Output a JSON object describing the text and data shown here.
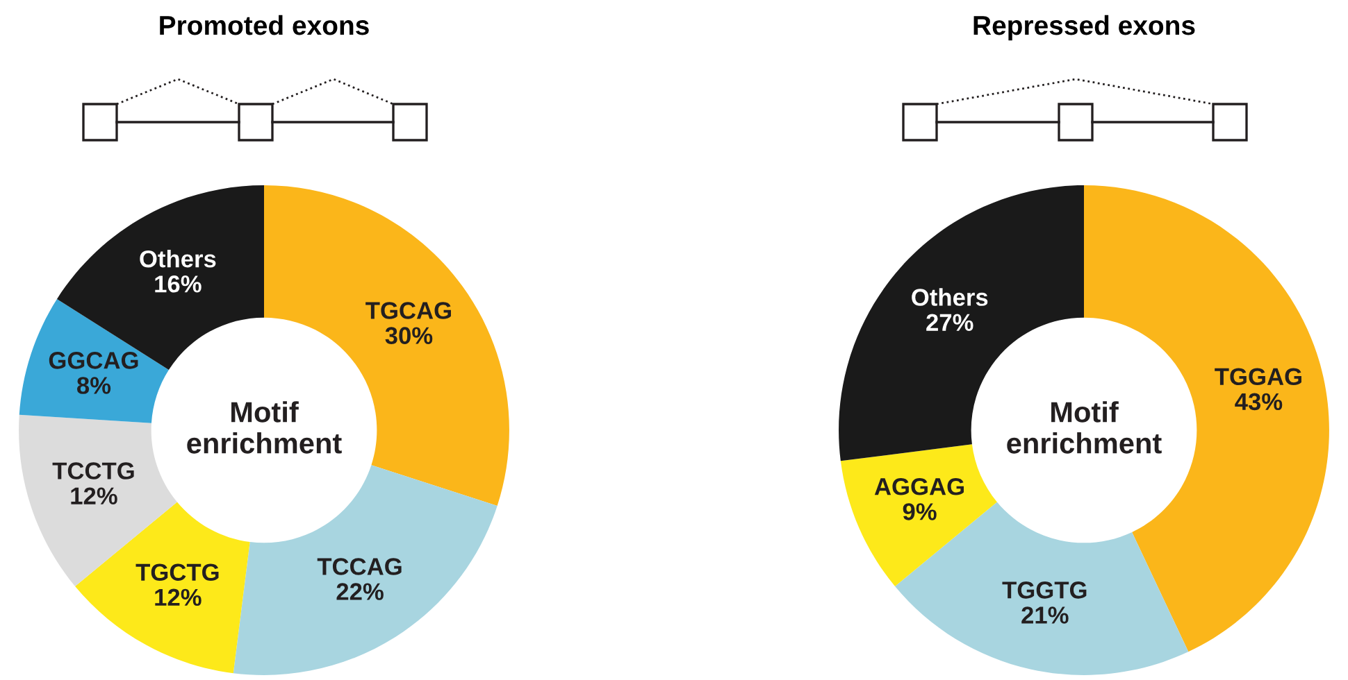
{
  "chart_data": [
    {
      "type": "donut",
      "title": "Promoted exons",
      "annotations": [
        "Motif\nenrichment"
      ],
      "value_labels": [
        "30%",
        "22%",
        "12%",
        "12%",
        "8%",
        "16%"
      ],
      "categories": [
        "TGCAG",
        "TCCAG",
        "TGCTG",
        "TCCTG",
        "GGCAG",
        "Others"
      ],
      "values": [
        30,
        22,
        12,
        12,
        8,
        16
      ],
      "colors": [
        "#fbb61a",
        "#a8d5e0",
        "#fde91a",
        "#dcdcdc",
        "#3aa8d8",
        "#1a1a1a"
      ]
    },
    {
      "type": "donut",
      "title": "Repressed exons",
      "annotations": [
        "Motif\nenrichment"
      ],
      "value_labels": [
        "43%",
        "21%",
        "9%",
        "27%"
      ],
      "categories": [
        "TGGAG",
        "TGGTG",
        "AGGAG",
        "Others"
      ],
      "values": [
        43,
        21,
        9,
        27
      ],
      "colors": [
        "#fbb61a",
        "#a8d5e0",
        "#fde91a",
        "#1a1a1a"
      ]
    }
  ]
}
